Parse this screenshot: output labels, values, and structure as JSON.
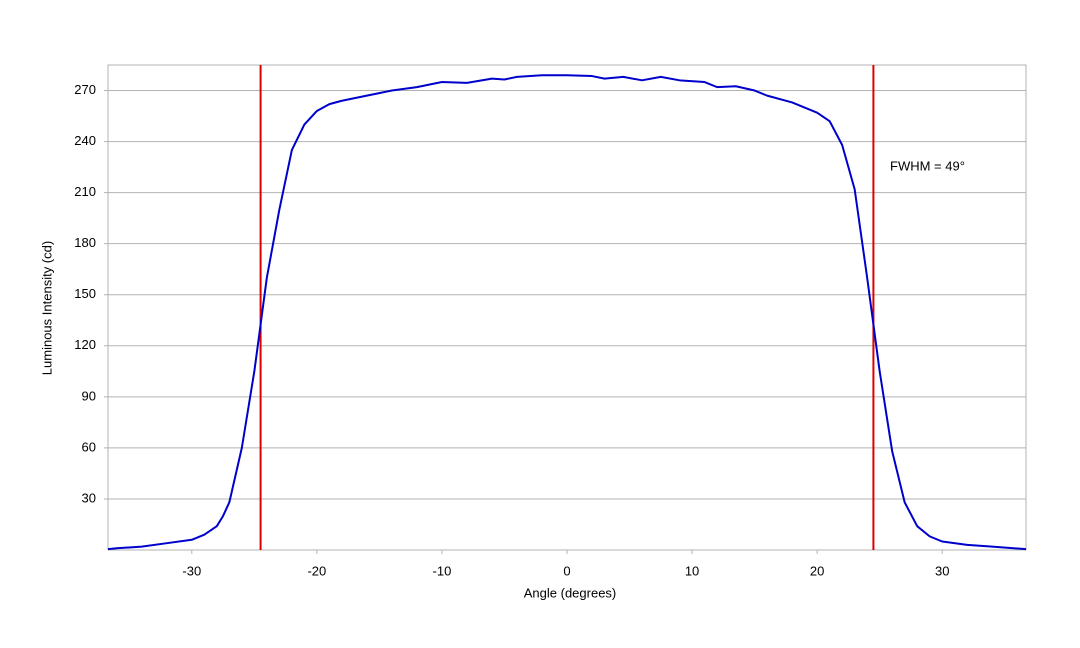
{
  "chart_data": {
    "type": "line",
    "x_label": "Angle (degrees)",
    "y_label": "Luminous Intensity (cd)",
    "xlim": [
      -36.7,
      36.7
    ],
    "ylim": [
      0,
      285
    ],
    "xticks": [
      -30,
      -20,
      -10,
      0,
      10,
      20,
      30
    ],
    "yticks": [
      30,
      60,
      90,
      120,
      150,
      180,
      210,
      240,
      270
    ],
    "grid": true,
    "series": [
      {
        "name": "Luminous Intensity",
        "color": "#0000cc",
        "x": [
          -36.7,
          -36,
          -34,
          -32,
          -30,
          -29,
          -28,
          -27.5,
          -27,
          -26,
          -25,
          -24,
          -23,
          -22,
          -21,
          -20,
          -19,
          -18,
          -16,
          -14,
          -12,
          -10,
          -8,
          -6,
          -5,
          -4,
          -2,
          0,
          2,
          3,
          4.5,
          6,
          7.5,
          9,
          11,
          12,
          13.5,
          15,
          16,
          18,
          20,
          21,
          22,
          23,
          24,
          25,
          26,
          27,
          28,
          29,
          30,
          32,
          34,
          36.7
        ],
        "values": [
          0.5,
          1,
          2,
          4,
          6,
          9,
          14,
          20,
          28,
          60,
          105,
          160,
          200,
          235,
          250,
          258,
          262,
          264,
          267,
          270,
          272,
          275,
          274.5,
          277,
          276.5,
          278,
          279,
          279,
          278.5,
          277,
          278,
          276,
          278,
          276,
          275,
          272,
          272.5,
          270,
          267,
          263,
          257,
          252,
          238,
          212,
          160,
          105,
          58,
          28,
          14,
          8,
          5,
          3,
          2,
          0.5
        ]
      }
    ],
    "vlines": {
      "x": [
        -24.5,
        24.5
      ],
      "color": "#dd0000"
    },
    "annotation": "FWHM = 49°"
  }
}
